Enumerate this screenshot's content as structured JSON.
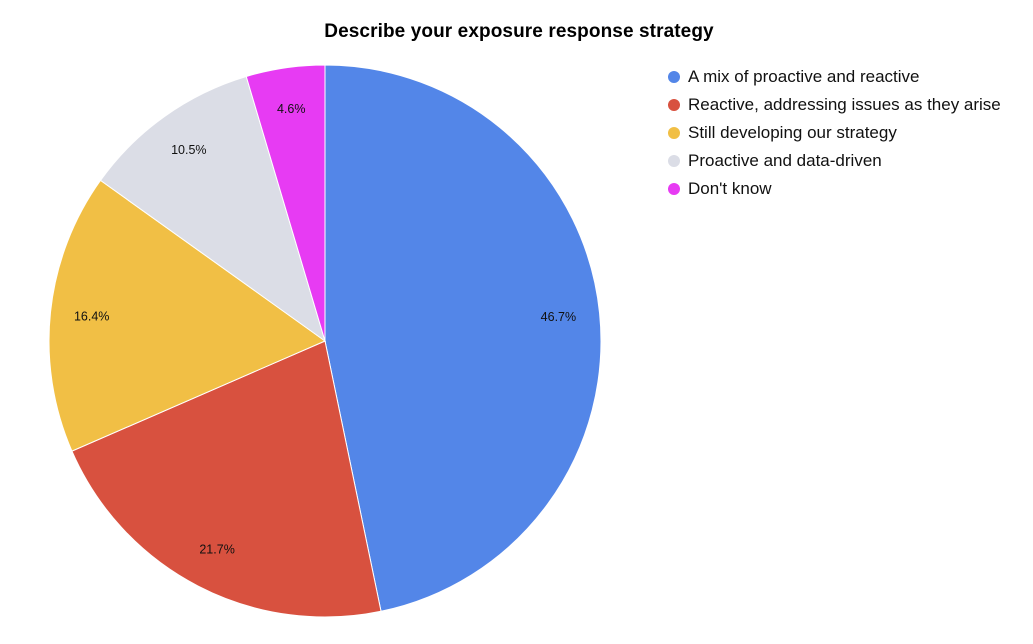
{
  "chart_data": {
    "type": "pie",
    "title": "Describe your exposure response strategy",
    "legend_position": "right",
    "slices": [
      {
        "label": "A mix of proactive and reactive",
        "value": 46.7,
        "display": "46.7%",
        "color": "#5386E8"
      },
      {
        "label": "Reactive, addressing issues as they arise",
        "value": 21.7,
        "display": "21.7%",
        "color": "#D8513F"
      },
      {
        "label": "Still developing our strategy",
        "value": 16.4,
        "display": "16.4%",
        "color": "#F1BF45"
      },
      {
        "label": "Proactive and data-driven",
        "value": 10.5,
        "display": "10.5%",
        "color": "#DBDDE6"
      },
      {
        "label": "Don't know",
        "value": 4.6,
        "display": "4.6%",
        "color": "#E73BF3"
      }
    ]
  }
}
